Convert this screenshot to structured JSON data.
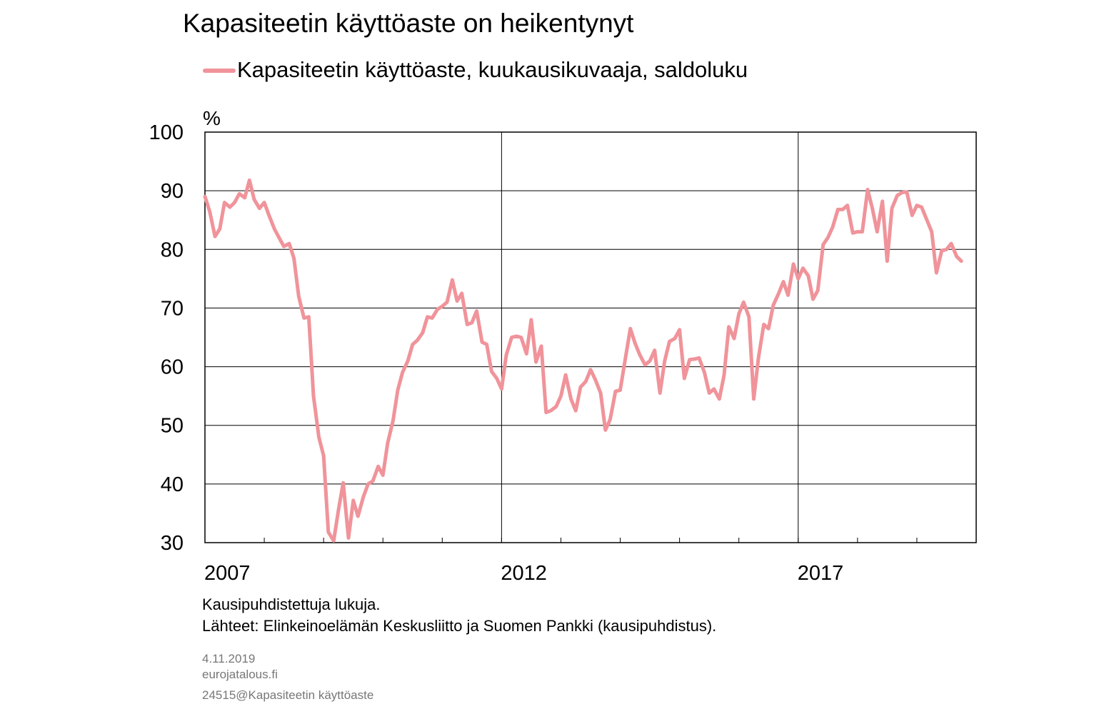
{
  "chart_data": {
    "type": "line",
    "title": "Kapasiteetin käyttöaste on heikentynyt",
    "ylabel": "%",
    "ylim": [
      30,
      100
    ],
    "yticks": [
      30,
      40,
      50,
      60,
      70,
      80,
      90,
      100
    ],
    "xlim": [
      2007,
      2020
    ],
    "xtick_labels": [
      "2007",
      "2012",
      "2017"
    ],
    "grid": true,
    "legend_position": "top-left",
    "series": [
      {
        "name": "Kapasiteetin käyttöaste, kuukausikuvaaja, saldoluku",
        "color": "#f0939a",
        "points": [
          [
            2007.0,
            89.0
          ],
          [
            2007.08,
            86.5
          ],
          [
            2007.17,
            82.2
          ],
          [
            2007.25,
            83.5
          ],
          [
            2007.33,
            88.0
          ],
          [
            2007.42,
            87.2
          ],
          [
            2007.5,
            88.0
          ],
          [
            2007.58,
            89.5
          ],
          [
            2007.67,
            88.8
          ],
          [
            2007.75,
            91.8
          ],
          [
            2007.83,
            88.5
          ],
          [
            2007.92,
            87.0
          ],
          [
            2008.0,
            88.0
          ],
          [
            2008.08,
            85.8
          ],
          [
            2008.17,
            83.5
          ],
          [
            2008.25,
            82.0
          ],
          [
            2008.33,
            80.5
          ],
          [
            2008.42,
            81.0
          ],
          [
            2008.5,
            78.5
          ],
          [
            2008.58,
            72.0
          ],
          [
            2008.67,
            68.3
          ],
          [
            2008.75,
            68.5
          ],
          [
            2008.83,
            55.0
          ],
          [
            2008.92,
            48.0
          ],
          [
            2009.0,
            44.8
          ],
          [
            2009.08,
            31.8
          ],
          [
            2009.17,
            30.3
          ],
          [
            2009.25,
            35.5
          ],
          [
            2009.33,
            40.2
          ],
          [
            2009.42,
            30.8
          ],
          [
            2009.5,
            37.2
          ],
          [
            2009.58,
            34.5
          ],
          [
            2009.67,
            37.8
          ],
          [
            2009.75,
            40.0
          ],
          [
            2009.83,
            40.5
          ],
          [
            2009.92,
            43.0
          ],
          [
            2010.0,
            41.5
          ],
          [
            2010.08,
            47.0
          ],
          [
            2010.17,
            50.8
          ],
          [
            2010.25,
            56.0
          ],
          [
            2010.33,
            59.0
          ],
          [
            2010.42,
            61.0
          ],
          [
            2010.5,
            63.8
          ],
          [
            2010.58,
            64.5
          ],
          [
            2010.67,
            65.8
          ],
          [
            2010.75,
            68.5
          ],
          [
            2010.83,
            68.3
          ],
          [
            2010.92,
            69.8
          ],
          [
            2011.0,
            70.3
          ],
          [
            2011.08,
            71.0
          ],
          [
            2011.17,
            74.8
          ],
          [
            2011.25,
            71.2
          ],
          [
            2011.33,
            72.5
          ],
          [
            2011.42,
            67.2
          ],
          [
            2011.5,
            67.5
          ],
          [
            2011.58,
            69.5
          ],
          [
            2011.67,
            64.2
          ],
          [
            2011.75,
            63.8
          ],
          [
            2011.83,
            59.2
          ],
          [
            2011.92,
            58.0
          ],
          [
            2012.0,
            56.2
          ],
          [
            2012.08,
            62.0
          ],
          [
            2012.17,
            65.0
          ],
          [
            2012.25,
            65.2
          ],
          [
            2012.33,
            65.0
          ],
          [
            2012.42,
            62.2
          ],
          [
            2012.5,
            68.0
          ],
          [
            2012.58,
            60.8
          ],
          [
            2012.67,
            63.5
          ],
          [
            2012.75,
            52.2
          ],
          [
            2012.83,
            52.5
          ],
          [
            2012.92,
            53.2
          ],
          [
            2013.0,
            55.0
          ],
          [
            2013.08,
            58.6
          ],
          [
            2013.17,
            54.5
          ],
          [
            2013.25,
            52.5
          ],
          [
            2013.33,
            56.5
          ],
          [
            2013.42,
            57.5
          ],
          [
            2013.5,
            59.5
          ],
          [
            2013.58,
            57.8
          ],
          [
            2013.67,
            55.5
          ],
          [
            2013.75,
            49.2
          ],
          [
            2013.83,
            51.0
          ],
          [
            2013.92,
            55.8
          ],
          [
            2014.0,
            56.0
          ],
          [
            2014.08,
            61.0
          ],
          [
            2014.17,
            66.5
          ],
          [
            2014.25,
            64.0
          ],
          [
            2014.33,
            62.0
          ],
          [
            2014.42,
            60.3
          ],
          [
            2014.5,
            61.0
          ],
          [
            2014.58,
            62.8
          ],
          [
            2014.67,
            55.5
          ],
          [
            2014.75,
            61.0
          ],
          [
            2014.83,
            64.3
          ],
          [
            2014.92,
            64.8
          ],
          [
            2015.0,
            66.3
          ],
          [
            2015.08,
            58.0
          ],
          [
            2015.17,
            61.2
          ],
          [
            2015.25,
            61.3
          ],
          [
            2015.33,
            61.5
          ],
          [
            2015.42,
            59.0
          ],
          [
            2015.5,
            55.5
          ],
          [
            2015.58,
            56.2
          ],
          [
            2015.67,
            54.5
          ],
          [
            2015.75,
            58.5
          ],
          [
            2015.83,
            66.8
          ],
          [
            2015.92,
            64.8
          ],
          [
            2016.0,
            69.0
          ],
          [
            2016.08,
            71.0
          ],
          [
            2016.17,
            68.5
          ],
          [
            2016.25,
            54.5
          ],
          [
            2016.33,
            61.5
          ],
          [
            2016.42,
            67.2
          ],
          [
            2016.5,
            66.5
          ],
          [
            2016.58,
            70.5
          ],
          [
            2016.67,
            72.5
          ],
          [
            2016.75,
            74.5
          ],
          [
            2016.83,
            72.2
          ],
          [
            2016.92,
            77.5
          ],
          [
            2017.0,
            75.0
          ],
          [
            2017.08,
            76.8
          ],
          [
            2017.17,
            75.5
          ],
          [
            2017.25,
            71.5
          ],
          [
            2017.33,
            73.0
          ],
          [
            2017.42,
            80.8
          ],
          [
            2017.5,
            82.0
          ],
          [
            2017.58,
            83.8
          ],
          [
            2017.67,
            86.8
          ],
          [
            2017.75,
            86.8
          ],
          [
            2017.83,
            87.5
          ],
          [
            2017.92,
            82.8
          ],
          [
            2018.0,
            83.0
          ],
          [
            2018.08,
            83.0
          ],
          [
            2018.17,
            90.2
          ],
          [
            2018.25,
            87.0
          ],
          [
            2018.33,
            83.0
          ],
          [
            2018.42,
            88.2
          ],
          [
            2018.5,
            78.0
          ],
          [
            2018.58,
            87.0
          ],
          [
            2018.67,
            89.2
          ],
          [
            2018.75,
            89.7
          ],
          [
            2018.83,
            89.8
          ],
          [
            2018.92,
            85.8
          ],
          [
            2019.0,
            87.5
          ],
          [
            2019.08,
            87.2
          ],
          [
            2019.17,
            85.0
          ],
          [
            2019.25,
            83.0
          ],
          [
            2019.33,
            76.0
          ],
          [
            2019.42,
            79.8
          ],
          [
            2019.5,
            80.0
          ],
          [
            2019.58,
            81.0
          ],
          [
            2019.67,
            78.8
          ],
          [
            2019.75,
            78.0
          ]
        ]
      }
    ]
  },
  "notes": {
    "line1": "Kausipuhdistettuja lukuja.",
    "line2": "Lähteet: Elinkeinoelämän Keskusliitto ja Suomen Pankki (kausipuhdistus)."
  },
  "footer": {
    "date": "4.11.2019",
    "site": "eurojatalous.fi",
    "code": "24515@Kapasiteetin käyttöaste"
  }
}
